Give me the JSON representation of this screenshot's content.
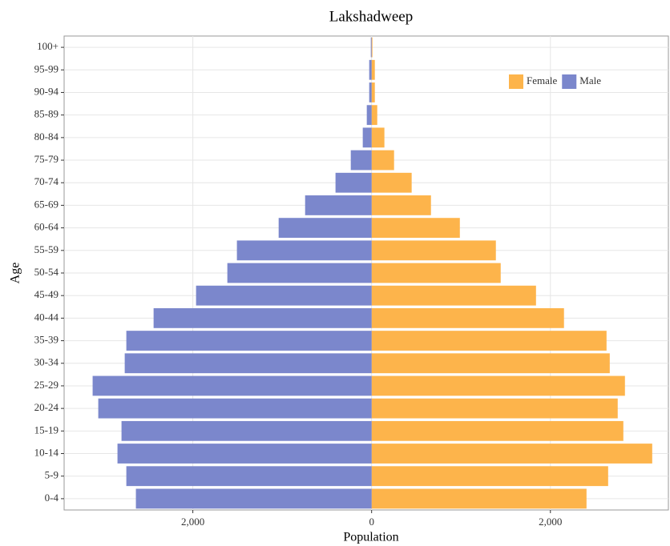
{
  "chart_data": {
    "type": "pyramid",
    "title": "Lakshadweep",
    "x_label": "Population",
    "y_label": "Age",
    "categories": [
      "0-4",
      "5-9",
      "10-14",
      "15-19",
      "20-24",
      "25-29",
      "30-34",
      "35-39",
      "40-44",
      "45-49",
      "50-54",
      "55-59",
      "60-64",
      "65-69",
      "70-74",
      "75-79",
      "80-84",
      "85-89",
      "90-94",
      "95-99",
      "100+"
    ],
    "series": [
      {
        "name": "Female",
        "color": "#fdb44b",
        "values": [
          2404,
          2646,
          3139,
          2816,
          2753,
          2834,
          2664,
          2628,
          2152,
          1839,
          1444,
          1390,
          987,
          664,
          448,
          251,
          143,
          63,
          36,
          36,
          9
        ]
      },
      {
        "name": "Male",
        "color": "#7b87cc",
        "values": [
          -2637,
          -2744,
          -2843,
          -2798,
          -3058,
          -3121,
          -2762,
          -2744,
          -2439,
          -1964,
          -1614,
          -1507,
          -1040,
          -744,
          -404,
          -233,
          -99,
          -54,
          -27,
          -27,
          -9
        ]
      }
    ],
    "xlim": [
      -3440,
      3320
    ],
    "xticks": [
      {
        "value": -2000,
        "label": "2,000"
      },
      0,
      {
        "value": 2000,
        "label": "2,000"
      }
    ],
    "grid": true,
    "legend": "top-right"
  }
}
